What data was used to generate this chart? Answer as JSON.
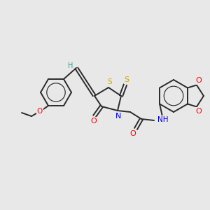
{
  "background_color": "#e8e8e8",
  "bond_color": "#2a2a2a",
  "atom_colors": {
    "O": "#ff0000",
    "N": "#0000ee",
    "S": "#ccaa00",
    "H_label": "#2a9d8f"
  },
  "figsize": [
    3.0,
    3.0
  ],
  "dpi": 100,
  "lw": 1.4,
  "fontsize": 7.5
}
